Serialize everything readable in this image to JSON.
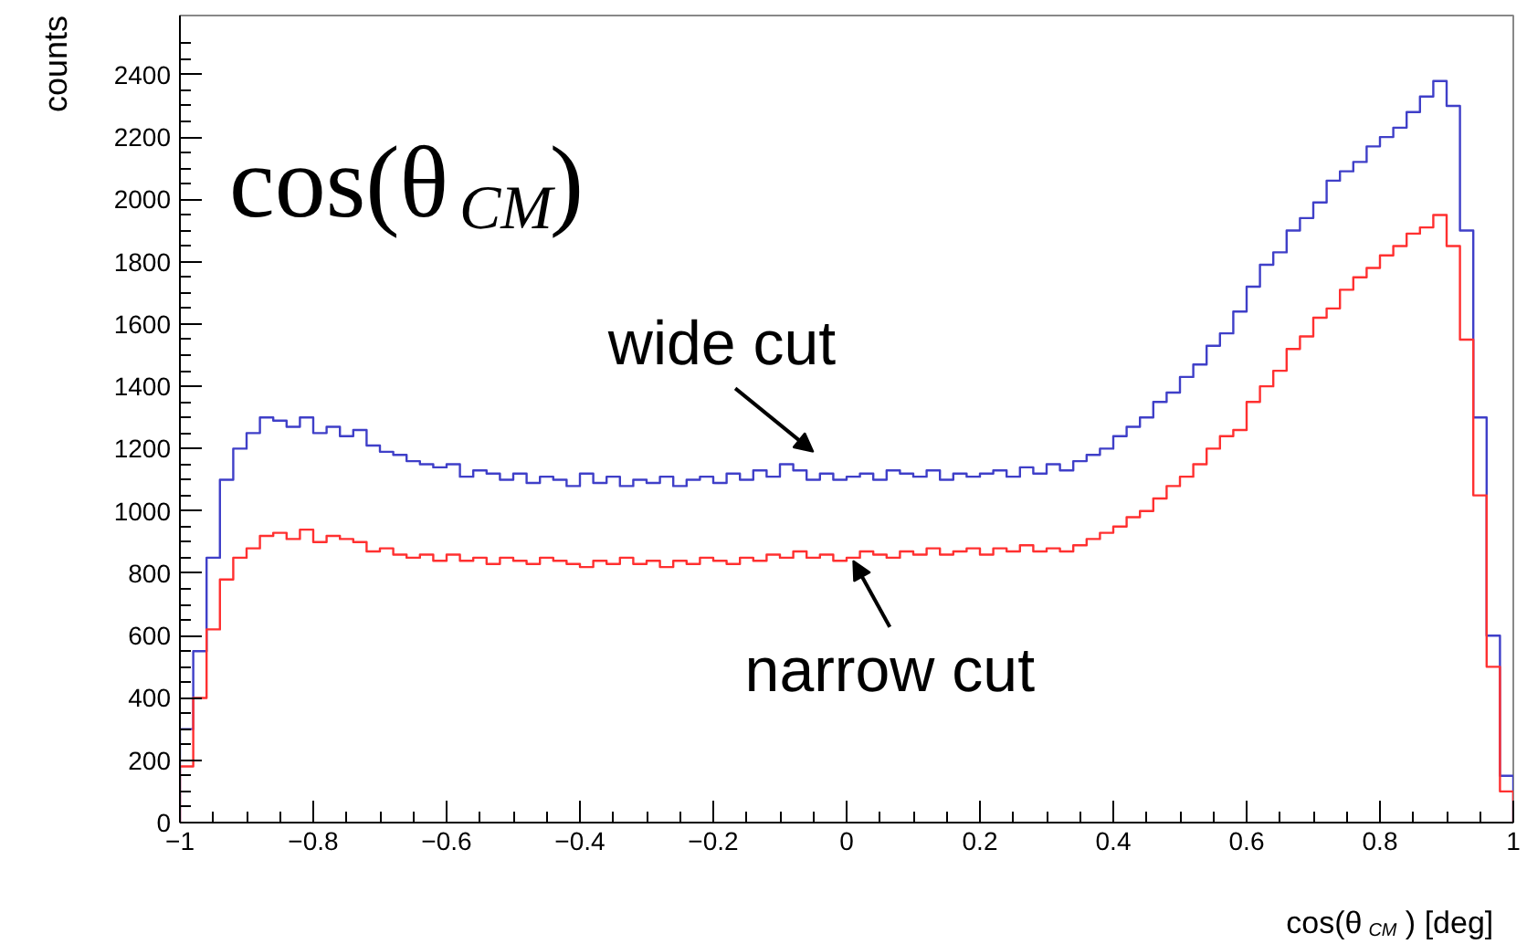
{
  "chart_data": {
    "type": "histogram",
    "title": "cos(θ$_{CM}$)",
    "xlabel": "cos(θ$_{CM}$) [deg]",
    "ylabel": "counts",
    "bins": [
      -1,
      -0.98,
      -0.96,
      -0.94,
      -0.92,
      -0.9,
      -0.88,
      -0.86,
      -0.84,
      -0.82,
      -0.8,
      -0.78,
      -0.76,
      -0.74,
      -0.72,
      -0.7,
      -0.68,
      -0.66,
      -0.64,
      -0.62,
      -0.6,
      -0.58,
      -0.56,
      -0.54,
      -0.52,
      -0.5,
      -0.48,
      -0.46,
      -0.44,
      -0.42,
      -0.4,
      -0.38,
      -0.36,
      -0.34,
      -0.32,
      -0.3,
      -0.28,
      -0.26,
      -0.24,
      -0.22,
      -0.2,
      -0.18,
      -0.16,
      -0.14,
      -0.12,
      -0.1,
      -0.08,
      -0.06,
      -0.04,
      -0.02,
      0,
      0.02,
      0.04,
      0.06,
      0.08,
      0.1,
      0.12,
      0.14,
      0.16,
      0.18,
      0.2,
      0.22,
      0.24,
      0.26,
      0.28,
      0.3,
      0.32,
      0.34,
      0.36,
      0.38,
      0.4,
      0.42,
      0.44,
      0.46,
      0.48,
      0.5,
      0.52,
      0.54,
      0.56,
      0.58,
      0.6,
      0.62,
      0.64,
      0.66,
      0.68,
      0.7,
      0.72,
      0.74,
      0.76,
      0.78,
      0.8,
      0.82,
      0.84,
      0.86,
      0.88,
      0.9,
      0.92,
      0.94,
      0.96,
      0.98,
      1
    ],
    "series": [
      {
        "color": "#3f3fc8",
        "values": [
          300,
          550,
          850,
          1100,
          1200,
          1250,
          1300,
          1290,
          1270,
          1300,
          1250,
          1270,
          1240,
          1260,
          1210,
          1190,
          1180,
          1160,
          1150,
          1140,
          1150,
          1110,
          1130,
          1120,
          1100,
          1120,
          1090,
          1110,
          1100,
          1080,
          1120,
          1090,
          1110,
          1080,
          1100,
          1090,
          1110,
          1080,
          1100,
          1110,
          1090,
          1120,
          1100,
          1130,
          1110,
          1150,
          1130,
          1100,
          1120,
          1100,
          1110,
          1120,
          1100,
          1130,
          1120,
          1110,
          1130,
          1100,
          1120,
          1110,
          1120,
          1130,
          1110,
          1140,
          1120,
          1150,
          1130,
          1160,
          1180,
          1200,
          1240,
          1270,
          1300,
          1350,
          1380,
          1430,
          1470,
          1530,
          1570,
          1640,
          1720,
          1790,
          1830,
          1900,
          1940,
          1990,
          2060,
          2090,
          2120,
          2170,
          2200,
          2230,
          2280,
          2330,
          2380,
          2300,
          1900,
          1300,
          600,
          150
        ]
      },
      {
        "color": "#ff3030",
        "values": [
          180,
          400,
          620,
          780,
          850,
          880,
          920,
          930,
          910,
          940,
          900,
          920,
          910,
          900,
          870,
          880,
          860,
          850,
          860,
          840,
          860,
          840,
          850,
          830,
          850,
          840,
          830,
          850,
          840,
          830,
          820,
          840,
          830,
          850,
          830,
          840,
          820,
          840,
          830,
          850,
          840,
          830,
          850,
          840,
          860,
          850,
          870,
          850,
          860,
          840,
          850,
          870,
          860,
          850,
          870,
          860,
          880,
          860,
          870,
          880,
          860,
          880,
          870,
          890,
          870,
          880,
          870,
          890,
          910,
          930,
          950,
          980,
          1000,
          1040,
          1080,
          1110,
          1150,
          1200,
          1240,
          1260,
          1350,
          1400,
          1450,
          1520,
          1560,
          1620,
          1650,
          1710,
          1750,
          1780,
          1820,
          1850,
          1890,
          1910,
          1950,
          1850,
          1550,
          1050,
          500,
          100
        ]
      }
    ],
    "xlim": [
      -1,
      1
    ],
    "ylim": [
      0,
      2590
    ],
    "xticks": [
      {
        "value": -1,
        "label": "−1"
      },
      {
        "value": -0.8,
        "label": "−0.8"
      },
      {
        "value": -0.6,
        "label": "−0.6"
      },
      {
        "value": -0.4,
        "label": "−0.4"
      },
      {
        "value": -0.2,
        "label": "−0.2"
      },
      0,
      0.2,
      0.4,
      0.6,
      0.8,
      1
    ],
    "yticks": [
      0,
      200,
      400,
      600,
      800,
      1000,
      1200,
      1400,
      1600,
      1800,
      2000,
      2200,
      2400
    ],
    "annotations": [
      {
        "text": "wide cut",
        "x": -0.05,
        "y": 1150
      },
      {
        "text": "narrow cut",
        "x": 0.01,
        "y": 880
      }
    ],
    "grid": false
  }
}
